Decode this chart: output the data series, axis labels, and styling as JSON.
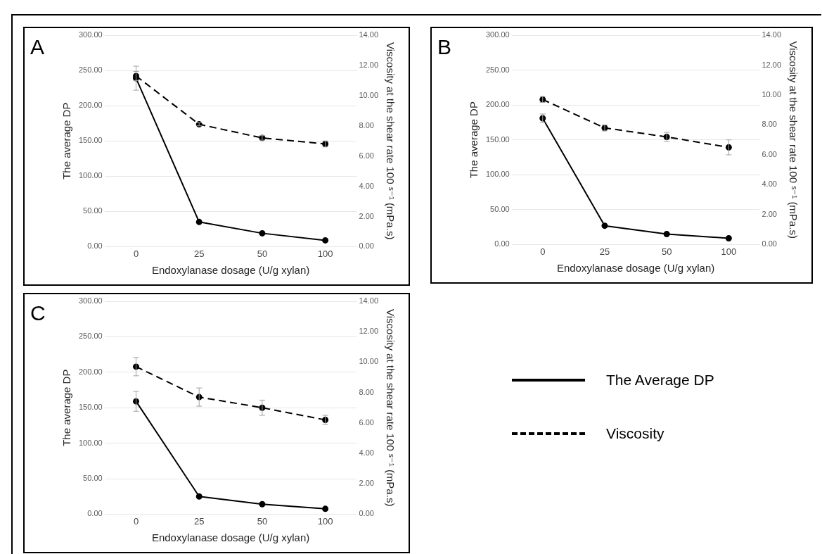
{
  "chart_data": [
    {
      "type": "line",
      "annotations": [
        "A"
      ],
      "xlabel": "Endoxylanase dosage (U/g xylan)",
      "ylabel": "The average DP",
      "y2label": "Viscosity at the shear rate 100 ˢ⁻¹ (mPa.s)",
      "categories": [
        "0",
        "25",
        "50",
        "100"
      ],
      "ylim": [
        0,
        300
      ],
      "yticks": [
        {
          "value": 0,
          "label": "0.00"
        },
        {
          "value": 50,
          "label": "50.00"
        },
        {
          "value": 100,
          "label": "100.00"
        },
        {
          "value": 150,
          "label": "150.00"
        },
        {
          "value": 200,
          "label": "200.00"
        },
        {
          "value": 250,
          "label": "250.00"
        },
        {
          "value": 300,
          "label": "300.00"
        }
      ],
      "y2lim": [
        0,
        14
      ],
      "y2ticks": [
        {
          "value": 0,
          "label": "0.00"
        },
        {
          "value": 2,
          "label": "2.00"
        },
        {
          "value": 4,
          "label": "4.00"
        },
        {
          "value": 6,
          "label": "6.00"
        },
        {
          "value": 8,
          "label": "8.00"
        },
        {
          "value": 10,
          "label": "10.00"
        },
        {
          "value": 12,
          "label": "12.00"
        },
        {
          "value": 14,
          "label": "14.00"
        }
      ],
      "grid": "y",
      "marker": "circle",
      "legend": false,
      "series": [
        {
          "color": "#000000",
          "line_style": "solid",
          "values": [
            239,
            35,
            19,
            9
          ],
          "errors": [
            17,
            null,
            null,
            null
          ]
        },
        {
          "color": "#000000",
          "line_style": "dashed",
          "axis": "y2",
          "values": [
            11.3,
            8.1,
            7.2,
            6.8
          ],
          "errors": [
            0.3,
            0.1,
            0.15,
            0.2
          ]
        }
      ]
    },
    {
      "type": "line",
      "annotations": [
        "B"
      ],
      "xlabel": "Endoxylanase dosage (U/g xylan)",
      "ylabel": "The average DP",
      "y2label": "Viscosity at the shear rate 100 ˢ⁻¹ (mPa.s)",
      "categories": [
        "0",
        "25",
        "50",
        "100"
      ],
      "ylim": [
        0,
        300
      ],
      "yticks": [
        {
          "value": 0,
          "label": "0.00"
        },
        {
          "value": 50,
          "label": "50.00"
        },
        {
          "value": 100,
          "label": "100.00"
        },
        {
          "value": 150,
          "label": "150.00"
        },
        {
          "value": 200,
          "label": "200.00"
        },
        {
          "value": 250,
          "label": "250.00"
        },
        {
          "value": 300,
          "label": "300.00"
        }
      ],
      "y2lim": [
        0,
        14
      ],
      "y2ticks": [
        {
          "value": 0,
          "label": "0.00"
        },
        {
          "value": 2,
          "label": "2.00"
        },
        {
          "value": 4,
          "label": "4.00"
        },
        {
          "value": 6,
          "label": "6.00"
        },
        {
          "value": 8,
          "label": "8.00"
        },
        {
          "value": 10,
          "label": "10.00"
        },
        {
          "value": 12,
          "label": "12.00"
        },
        {
          "value": 14,
          "label": "14.00"
        }
      ],
      "grid": "y",
      "marker": "circle",
      "legend": false,
      "series": [
        {
          "color": "#000000",
          "line_style": "solid",
          "values": [
            181,
            27,
            15,
            9
          ],
          "errors": [
            6,
            null,
            null,
            null
          ]
        },
        {
          "color": "#000000",
          "line_style": "dashed",
          "axis": "y2",
          "values": [
            9.7,
            7.8,
            7.2,
            6.5
          ],
          "errors": [
            0.2,
            0.2,
            0.3,
            0.5
          ]
        }
      ]
    },
    {
      "type": "line",
      "annotations": [
        "C"
      ],
      "xlabel": "Endoxylanase dosage (U/g xylan)",
      "ylabel": "The average DP",
      "y2label": "Viscosity at the shear rate 100 ˢ⁻¹ (mPa.s)",
      "categories": [
        "0",
        "25",
        "50",
        "100"
      ],
      "ylim": [
        0,
        300
      ],
      "yticks": [
        {
          "value": 0,
          "label": "0.00"
        },
        {
          "value": 50,
          "label": "50.00"
        },
        {
          "value": 100,
          "label": "100.00"
        },
        {
          "value": 150,
          "label": "150.00"
        },
        {
          "value": 200,
          "label": "200.00"
        },
        {
          "value": 250,
          "label": "250.00"
        },
        {
          "value": 300,
          "label": "300.00"
        }
      ],
      "y2lim": [
        0,
        14
      ],
      "y2ticks": [
        {
          "value": 0,
          "label": "0.00"
        },
        {
          "value": 2,
          "label": "2.00"
        },
        {
          "value": 4,
          "label": "4.00"
        },
        {
          "value": 6,
          "label": "6.00"
        },
        {
          "value": 8,
          "label": "8.00"
        },
        {
          "value": 10,
          "label": "10.00"
        },
        {
          "value": 12,
          "label": "12.00"
        },
        {
          "value": 14,
          "label": "14.00"
        }
      ],
      "grid": "y",
      "marker": "circle",
      "legend": "right",
      "series": [
        {
          "name": "The Average DP",
          "color": "#000000",
          "line_style": "solid",
          "values": [
            159,
            25,
            14,
            7.5
          ],
          "errors": [
            14,
            null,
            null,
            null
          ]
        },
        {
          "name": "Viscosity",
          "color": "#000000",
          "line_style": "dashed",
          "axis": "y2",
          "values": [
            9.7,
            7.7,
            7.0,
            6.2
          ],
          "errors": [
            0.6,
            0.6,
            0.5,
            0.3
          ]
        }
      ]
    }
  ]
}
